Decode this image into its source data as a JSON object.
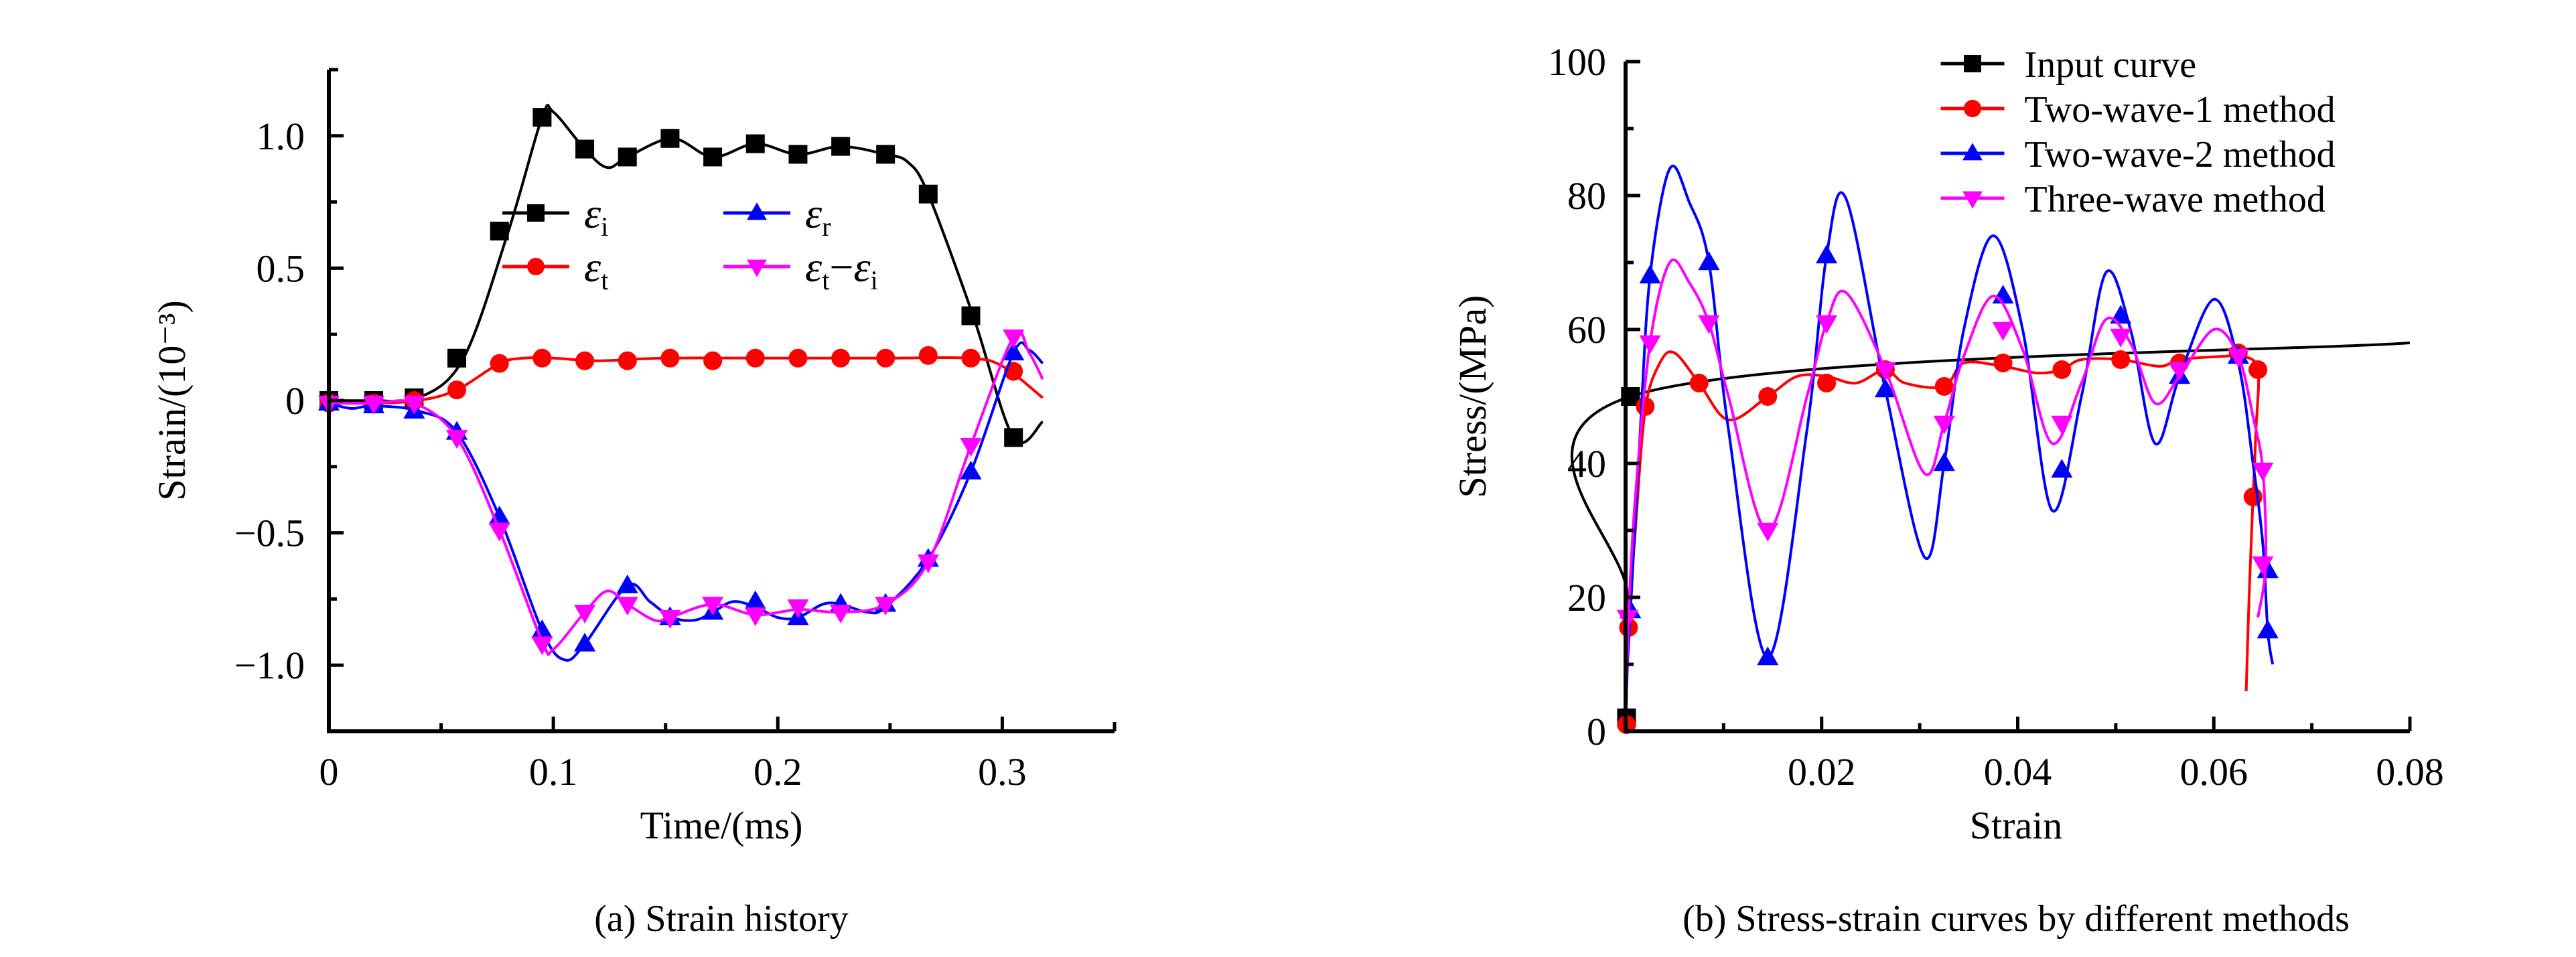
{
  "chart_data": [
    {
      "id": "a",
      "type": "line",
      "caption": "(a) Strain history",
      "xlabel": "Time/(ms)",
      "ylabel": "Strain/(10⁻³)",
      "xlim": [
        0,
        0.35
      ],
      "ylim": [
        -1.25,
        1.25
      ],
      "xticks": [
        {
          "value": 0,
          "label": "0"
        },
        {
          "value": 0.1,
          "label": "0.1"
        },
        {
          "value": 0.2,
          "label": "0.2"
        },
        {
          "value": 0.3,
          "label": "0.3"
        }
      ],
      "xminor": [
        0.05,
        0.15,
        0.25,
        0.35
      ],
      "yticks": [
        {
          "value": 1.0,
          "label": "1.0"
        },
        {
          "value": 0.5,
          "label": "0.5"
        },
        {
          "value": 0,
          "label": "0"
        },
        {
          "value": -0.5,
          "label": "−0.5"
        },
        {
          "value": -1.0,
          "label": "−1.0"
        }
      ],
      "yminor": [
        1.25,
        0.75,
        0.25,
        -0.25,
        -0.75,
        -1.25
      ],
      "grid": false,
      "legend": {
        "placement": "center-top",
        "columns": 2
      },
      "series": [
        {
          "name": "εi",
          "symbol": "ε",
          "sub": "i",
          "sub2": "",
          "color": "#000000",
          "marker": "square",
          "x": [
            0,
            0.02,
            0.04,
            0.06,
            0.08,
            0.095,
            0.1,
            0.114,
            0.124,
            0.133,
            0.153,
            0.171,
            0.19,
            0.209,
            0.228,
            0.248,
            0.258,
            0.267,
            0.287,
            0.305,
            0.318
          ],
          "y": [
            0,
            0,
            0.01,
            0.16,
            0.64,
            1.07,
            1.09,
            0.95,
            0.88,
            0.92,
            0.99,
            0.92,
            0.97,
            0.93,
            0.96,
            0.93,
            0.9,
            0.78,
            0.32,
            -0.14,
            -0.08
          ],
          "marker_x": [
            0,
            0.02,
            0.038,
            0.057,
            0.076,
            0.095,
            0.114,
            0.133,
            0.152,
            0.171,
            0.19,
            0.209,
            0.228,
            0.248,
            0.267,
            0.286,
            0.305
          ],
          "marker_y": [
            0,
            0,
            0.01,
            0.16,
            0.64,
            1.07,
            0.95,
            0.92,
            0.99,
            0.92,
            0.97,
            0.93,
            0.96,
            0.93,
            0.78,
            0.32,
            -0.14
          ]
        },
        {
          "name": "εt",
          "symbol": "ε",
          "sub": "t",
          "sub2": "",
          "color": "#ff0000",
          "marker": "circle",
          "x": [
            0,
            0.02,
            0.04,
            0.057,
            0.076,
            0.087,
            0.1,
            0.12,
            0.15,
            0.2,
            0.25,
            0.285,
            0.3,
            0.318
          ],
          "y": [
            -0.01,
            -0.01,
            0.0,
            0.04,
            0.14,
            0.16,
            0.16,
            0.15,
            0.16,
            0.16,
            0.16,
            0.16,
            0.13,
            0.01
          ],
          "marker_x": [
            0,
            0.02,
            0.038,
            0.057,
            0.076,
            0.095,
            0.114,
            0.133,
            0.152,
            0.171,
            0.19,
            0.209,
            0.228,
            0.248,
            0.267,
            0.286,
            0.305
          ],
          "marker_y": [
            -0.01,
            -0.01,
            0.0,
            0.04,
            0.14,
            0.16,
            0.15,
            0.15,
            0.16,
            0.15,
            0.16,
            0.16,
            0.16,
            0.16,
            0.17,
            0.16,
            0.11
          ]
        },
        {
          "name": "εr",
          "symbol": "ε",
          "sub": "r",
          "sub2": "",
          "color": "#0000ff",
          "marker": "triangle-up",
          "x": [
            0,
            0.01,
            0.02,
            0.04,
            0.057,
            0.076,
            0.095,
            0.105,
            0.114,
            0.133,
            0.143,
            0.153,
            0.163,
            0.171,
            0.18,
            0.19,
            0.2,
            0.209,
            0.22,
            0.228,
            0.24,
            0.248,
            0.267,
            0.286,
            0.305,
            0.312,
            0.318
          ],
          "y": [
            -0.01,
            -0.03,
            -0.02,
            -0.04,
            -0.12,
            -0.44,
            -0.87,
            -0.98,
            -0.92,
            -0.7,
            -0.76,
            -0.82,
            -0.83,
            -0.8,
            -0.76,
            -0.78,
            -0.82,
            -0.82,
            -0.77,
            -0.77,
            -0.8,
            -0.78,
            -0.6,
            -0.27,
            0.18,
            0.19,
            0.14
          ],
          "marker_x": [
            0,
            0.02,
            0.038,
            0.057,
            0.076,
            0.095,
            0.114,
            0.133,
            0.152,
            0.171,
            0.19,
            0.209,
            0.228,
            0.248,
            0.267,
            0.286,
            0.305
          ],
          "marker_y": [
            -0.01,
            -0.02,
            -0.04,
            -0.12,
            -0.44,
            -0.87,
            -0.92,
            -0.7,
            -0.82,
            -0.8,
            -0.76,
            -0.82,
            -0.77,
            -0.77,
            -0.6,
            -0.27,
            0.18
          ]
        },
        {
          "name": "εt−εi",
          "symbol": "ε",
          "sub": "t",
          "sub2": "i",
          "color": "#ff00ff",
          "marker": "triangle-down",
          "x": [
            0,
            0.02,
            0.038,
            0.057,
            0.076,
            0.095,
            0.1,
            0.114,
            0.124,
            0.133,
            0.145,
            0.152,
            0.171,
            0.19,
            0.209,
            0.228,
            0.248,
            0.267,
            0.286,
            0.305,
            0.312,
            0.318
          ],
          "y": [
            -0.01,
            -0.01,
            -0.01,
            -0.14,
            -0.49,
            -0.91,
            -0.94,
            -0.8,
            -0.72,
            -0.77,
            -0.83,
            -0.82,
            -0.77,
            -0.81,
            -0.79,
            -0.8,
            -0.77,
            -0.61,
            -0.17,
            0.24,
            0.18,
            0.08
          ],
          "marker_x": [
            0,
            0.02,
            0.038,
            0.057,
            0.076,
            0.095,
            0.114,
            0.133,
            0.152,
            0.171,
            0.19,
            0.209,
            0.228,
            0.248,
            0.267,
            0.286,
            0.305
          ],
          "marker_y": [
            -0.01,
            -0.01,
            -0.01,
            -0.14,
            -0.49,
            -0.92,
            -0.8,
            -0.77,
            -0.82,
            -0.77,
            -0.81,
            -0.78,
            -0.8,
            -0.77,
            -0.61,
            -0.17,
            0.24
          ]
        }
      ]
    },
    {
      "id": "b",
      "type": "line",
      "caption": "(b) Stress-strain curves by different methods",
      "xlabel": "Strain",
      "ylabel": "Stress/(MPa)",
      "xlim": [
        0,
        0.08
      ],
      "ylim": [
        0,
        100
      ],
      "xticks": [
        {
          "value": 0.02,
          "label": "0.02"
        },
        {
          "value": 0.04,
          "label": "0.04"
        },
        {
          "value": 0.06,
          "label": "0.06"
        },
        {
          "value": 0.08,
          "label": "0.08"
        }
      ],
      "xminor": [
        0.01,
        0.03,
        0.05,
        0.07
      ],
      "yticks": [
        {
          "value": 0,
          "label": "0"
        },
        {
          "value": 20,
          "label": "20"
        },
        {
          "value": 40,
          "label": "40"
        },
        {
          "value": 60,
          "label": "60"
        },
        {
          "value": 80,
          "label": "80"
        },
        {
          "value": 100,
          "label": "100"
        }
      ],
      "yminor": [
        10,
        30,
        50,
        70,
        90
      ],
      "grid": false,
      "legend": {
        "placement": "top-right",
        "columns": 1
      },
      "series": [
        {
          "name": "Input curve",
          "color": "#000000",
          "marker": "square",
          "x": [
            0,
            0.0002,
            0.0005,
            0.08
          ],
          "y": [
            0,
            20,
            50,
            58
          ],
          "marker_x": [
            0.0001,
            0.0005
          ],
          "marker_y": [
            2,
            50
          ]
        },
        {
          "name": "Two-wave-1 method",
          "color": "#ff0000",
          "marker": "circle",
          "x": [
            0,
            0.0003,
            0.001,
            0.002,
            0.0035,
            0.005,
            0.0075,
            0.0105,
            0.0145,
            0.0175,
            0.0205,
            0.0235,
            0.0265,
            0.0285,
            0.0325,
            0.0345,
            0.0385,
            0.042,
            0.0445,
            0.0465,
            0.0505,
            0.0545,
            0.0565,
            0.061,
            0.063,
            0.0645,
            0.0643,
            0.064,
            0.0636,
            0.0633
          ],
          "y": [
            0,
            15,
            30,
            48,
            55,
            56.5,
            52,
            46.5,
            50,
            53,
            53,
            52,
            54,
            52,
            51.5,
            55,
            54.5,
            53.5,
            54,
            55.5,
            55.5,
            54.5,
            55.5,
            56,
            56,
            54,
            45,
            35,
            20,
            6
          ],
          "marker_x": [
            0.0001,
            0.0003,
            0.002,
            0.0075,
            0.0145,
            0.0205,
            0.0265,
            0.0325,
            0.0385,
            0.0445,
            0.0505,
            0.0565,
            0.0625,
            0.0645,
            0.064
          ],
          "marker_y": [
            1,
            15.5,
            48.5,
            52,
            50,
            52,
            54,
            51.5,
            55,
            54,
            55.5,
            55,
            56.5,
            54,
            35
          ]
        },
        {
          "name": "Two-wave-2 method",
          "color": "#0000ff",
          "marker": "triangle-up",
          "x": [
            0,
            0.0002,
            0.0005,
            0.0015,
            0.0025,
            0.0045,
            0.0065,
            0.0085,
            0.0105,
            0.0145,
            0.0185,
            0.0205,
            0.0225,
            0.0265,
            0.0305,
            0.0325,
            0.0345,
            0.0375,
            0.0405,
            0.0435,
            0.0465,
            0.049,
            0.0515,
            0.054,
            0.0565,
            0.06,
            0.0625,
            0.064,
            0.065,
            0.0655,
            0.066
          ],
          "y": [
            0,
            10,
            18,
            45,
            68,
            84,
            79,
            70,
            45,
            11,
            45,
            71,
            79.5,
            51,
            26,
            40,
            60,
            74,
            60,
            33,
            50,
            68.5,
            60,
            43,
            53,
            64.5,
            55,
            40,
            28,
            15,
            10
          ],
          "marker_x": [
            0.0005,
            0.0025,
            0.0085,
            0.0145,
            0.0205,
            0.0265,
            0.0325,
            0.0385,
            0.0445,
            0.0505,
            0.0565,
            0.0625,
            0.0655,
            0.0655
          ],
          "marker_y": [
            18,
            68,
            70,
            11,
            71,
            51,
            40,
            65,
            39,
            62,
            53,
            56,
            24,
            15
          ]
        },
        {
          "name": "Three-wave method",
          "color": "#ff00ff",
          "marker": "triangle-down",
          "x": [
            0,
            0.0003,
            0.001,
            0.0025,
            0.0045,
            0.0065,
            0.0085,
            0.0105,
            0.0145,
            0.0185,
            0.0205,
            0.0225,
            0.0265,
            0.0305,
            0.0325,
            0.0345,
            0.0375,
            0.0405,
            0.0435,
            0.0465,
            0.049,
            0.0515,
            0.054,
            0.0565,
            0.06,
            0.0625,
            0.064,
            0.065,
            0.0653,
            0.0645
          ],
          "y": [
            0,
            17,
            35,
            58,
            70,
            67,
            61,
            50,
            30,
            50,
            61,
            65.5,
            54,
            38.5,
            46,
            56,
            65,
            57,
            43,
            52,
            61.5,
            58,
            49,
            53,
            60,
            56,
            47,
            39,
            25,
            17
          ],
          "marker_x": [
            0.0002,
            0.0025,
            0.0085,
            0.0145,
            0.0205,
            0.0265,
            0.0325,
            0.0385,
            0.0445,
            0.0505,
            0.0565,
            0.0625,
            0.065,
            0.065
          ],
          "marker_y": [
            17,
            58,
            61,
            30,
            61,
            54,
            46,
            60,
            46,
            59,
            54,
            56,
            39,
            25
          ]
        }
      ]
    }
  ]
}
